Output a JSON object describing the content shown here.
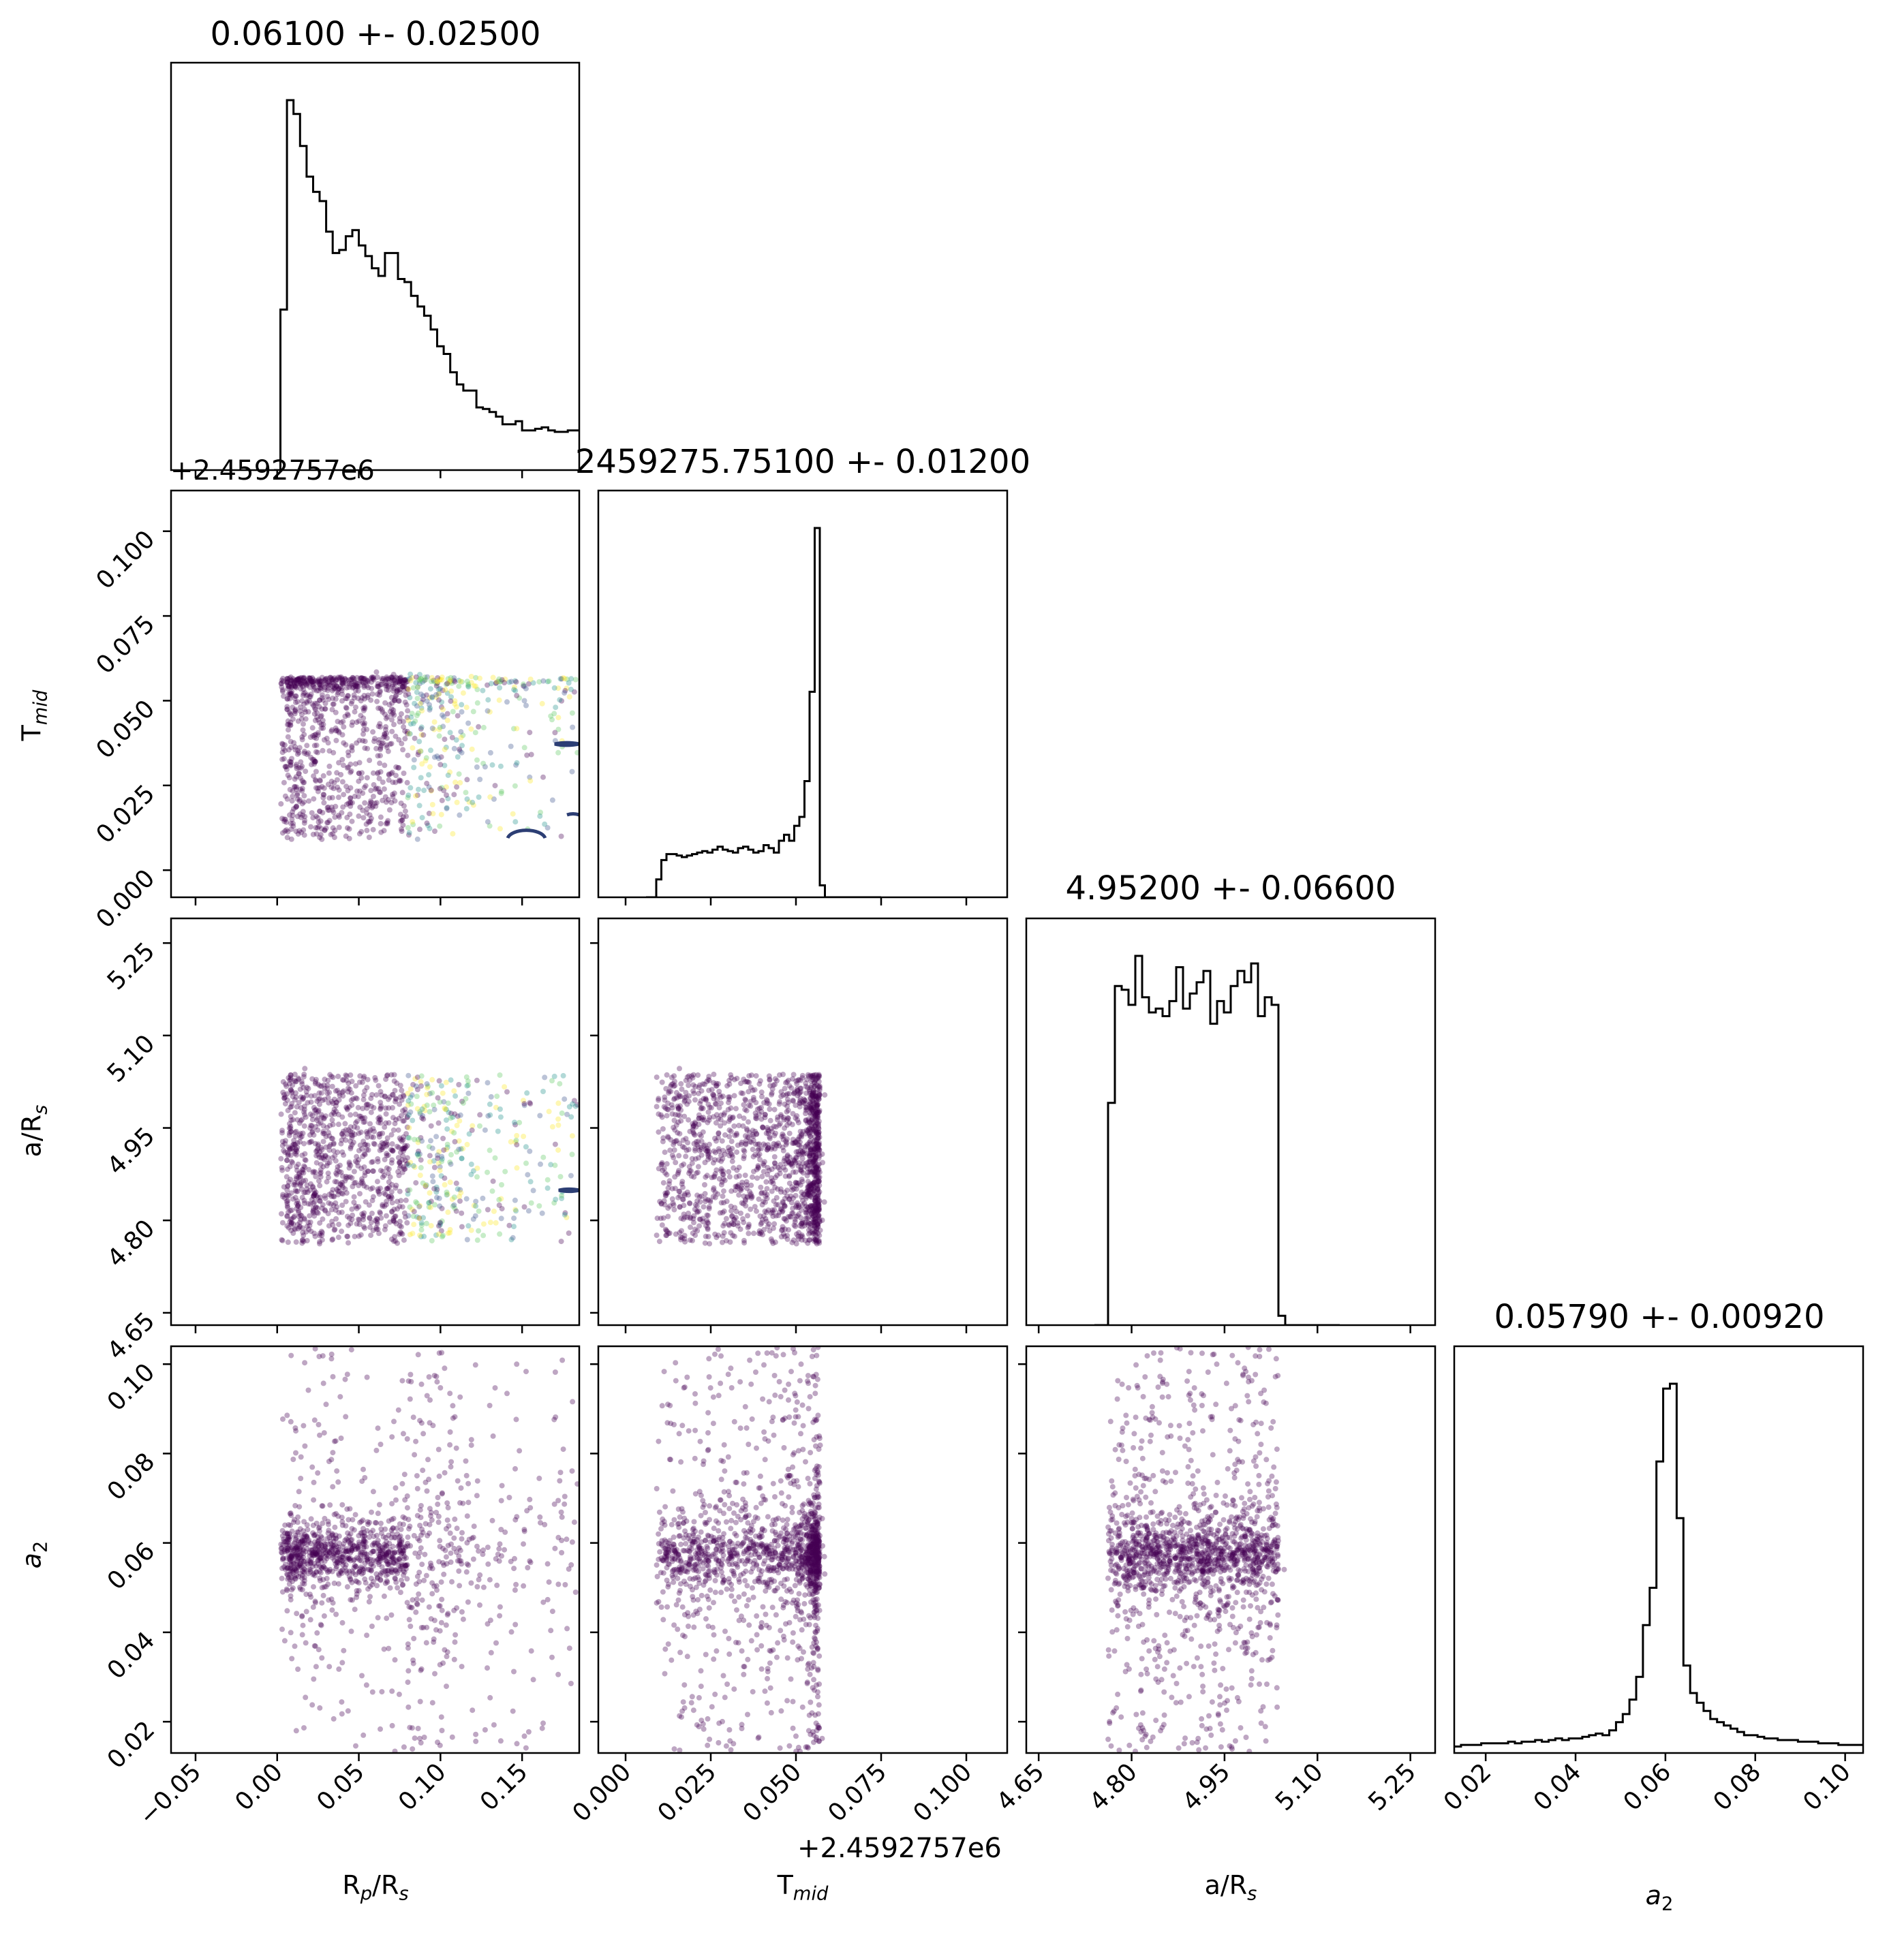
{
  "chart_data": {
    "type": "scatter",
    "kind": "corner-plot",
    "parameters": [
      {
        "key": "rp",
        "label_main": "R",
        "label_sub": "p",
        "label_tail": "/R",
        "label_tail_sub": "s",
        "range": [
          -0.065,
          0.185
        ],
        "ticks": [
          -0.05,
          0.0,
          0.05,
          0.1,
          0.15
        ],
        "tick_labels": [
          "−0.05",
          "0.00",
          "0.05",
          "0.10",
          "0.15"
        ]
      },
      {
        "key": "tmid",
        "label_main": "T",
        "label_sub": "mid",
        "label_tail": "",
        "label_tail_sub": "",
        "range": [
          -0.008,
          0.112
        ],
        "ticks": [
          0.0,
          0.025,
          0.05,
          0.075,
          0.1
        ],
        "tick_labels": [
          "0.000",
          "0.025",
          "0.050",
          "0.075",
          "0.100"
        ]
      },
      {
        "key": "ars",
        "label_main": "a/R",
        "label_sub": "s",
        "label_tail": "",
        "label_tail_sub": "",
        "range": [
          4.63,
          5.29
        ],
        "ticks": [
          4.65,
          4.8,
          4.95,
          5.1,
          5.25
        ],
        "tick_labels": [
          "4.65",
          "4.80",
          "4.95",
          "5.10",
          "5.25"
        ]
      },
      {
        "key": "a2",
        "label_main": "a",
        "label_sub": "2",
        "label_tail": "",
        "label_tail_sub": "",
        "label_italic": true,
        "range": [
          0.013,
          0.104
        ],
        "ticks": [
          0.02,
          0.04,
          0.06,
          0.08,
          0.1
        ],
        "tick_labels": [
          "0.02",
          "0.04",
          "0.06",
          "0.08",
          "0.10"
        ]
      }
    ],
    "titles": [
      "0.06100 +- 0.02500",
      "2459275.75100 +- 0.01200",
      "4.95200 +- 0.06600",
      "0.05790 +- 0.00920"
    ],
    "offset_labels": {
      "rp_tmid": "+2.4592757e6",
      "tmid_x": "+2.4592757e6"
    },
    "histograms": [
      {
        "param": "rp",
        "bin_edges_start": -0.002,
        "bin_width": 0.004,
        "counts": [
          0,
          105,
          242,
          233,
          212,
          192,
          182,
          176,
          156,
          142,
          144,
          153,
          157,
          147,
          140,
          132,
          127,
          142,
          142,
          125,
          123,
          114,
          107,
          101,
          92,
          81,
          76,
          64,
          56,
          52,
          52,
          41,
          40,
          38,
          35,
          30,
          30,
          32,
          26,
          26,
          27,
          28,
          26,
          25,
          25,
          26,
          26,
          23,
          23,
          22,
          21,
          22,
          22,
          21,
          24,
          22,
          21,
          22,
          24,
          18,
          20,
          25,
          22,
          19,
          20,
          17,
          21,
          18,
          21,
          17,
          17,
          20,
          19,
          21,
          20,
          18,
          17,
          18,
          19,
          21,
          23,
          22,
          18,
          17,
          15,
          13,
          12,
          13,
          12,
          11,
          10,
          10
        ]
      },
      {
        "param": "tmid",
        "bin_edges_start": 0.006,
        "bin_width": 0.0015,
        "counts": [
          0,
          0,
          12,
          25,
          29,
          29,
          28,
          27,
          28,
          29,
          30,
          31,
          30,
          32,
          34,
          32,
          31,
          30,
          33,
          34,
          32,
          30,
          31,
          35,
          33,
          30,
          38,
          42,
          38,
          48,
          54,
          78,
          138,
          248,
          8,
          0,
          0,
          0,
          0,
          0,
          0,
          0,
          0,
          0,
          0,
          0
        ]
      },
      {
        "param": "ars",
        "bin_edges_start": 4.74,
        "bin_width": 0.011,
        "counts": [
          0,
          0,
          118,
          180,
          178,
          170,
          196,
          174,
          166,
          168,
          164,
          172,
          190,
          168,
          176,
          182,
          188,
          160,
          172,
          166,
          180,
          188,
          182,
          192,
          164,
          174,
          170,
          5,
          0,
          0,
          0,
          0,
          0,
          0,
          0,
          0
        ]
      },
      {
        "param": "a2",
        "bin_edges_start": 0.013,
        "bin_width": 0.0015,
        "counts": [
          4,
          5,
          5,
          5,
          6,
          6,
          6,
          6,
          7,
          6,
          7,
          7,
          8,
          7,
          8,
          9,
          8,
          9,
          9,
          10,
          11,
          12,
          11,
          14,
          19,
          24,
          33,
          47,
          79,
          102,
          180,
          225,
          228,
          145,
          54,
          37,
          31,
          26,
          21,
          19,
          17,
          15,
          13,
          11,
          11,
          10,
          9,
          9,
          8,
          8,
          8,
          7,
          7,
          7,
          6,
          6,
          6,
          5,
          5,
          5,
          5
        ]
      }
    ],
    "scatter_samples": 1500,
    "colormap": [
      "#440154",
      "#3b528b",
      "#21918c",
      "#5ec962",
      "#fde725"
    ],
    "point_color": "#440154",
    "contour_color": "#2c3e74",
    "hist_color": "#000000",
    "grid": false
  }
}
